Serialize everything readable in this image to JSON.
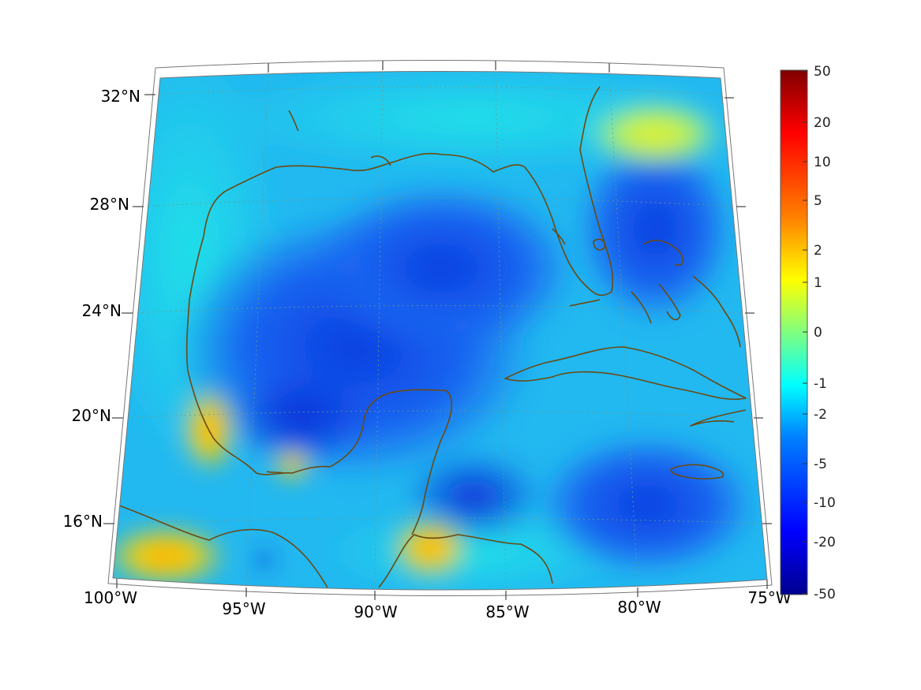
{
  "map": {
    "lon_labels": [
      "100°W",
      "95°W",
      "90°W",
      "85°W",
      "80°W",
      "75°W"
    ],
    "lat_labels": [
      "32°N",
      "28°N",
      "24°N",
      "20°N",
      "16°N"
    ]
  },
  "colorbar": {
    "ticks": [
      "50",
      "20",
      "10",
      "5",
      "2",
      "1",
      "0",
      "-1",
      "-2",
      "-5",
      "-10",
      "-20",
      "-50"
    ],
    "colors": [
      "#00008f",
      "#0000ff",
      "#0080ff",
      "#00ffff",
      "#80ff80",
      "#ffff00",
      "#ff8000",
      "#ff0000",
      "#800000"
    ]
  },
  "colors": {
    "coast": "#6b4a12",
    "grid": "#6a9a8a"
  }
}
